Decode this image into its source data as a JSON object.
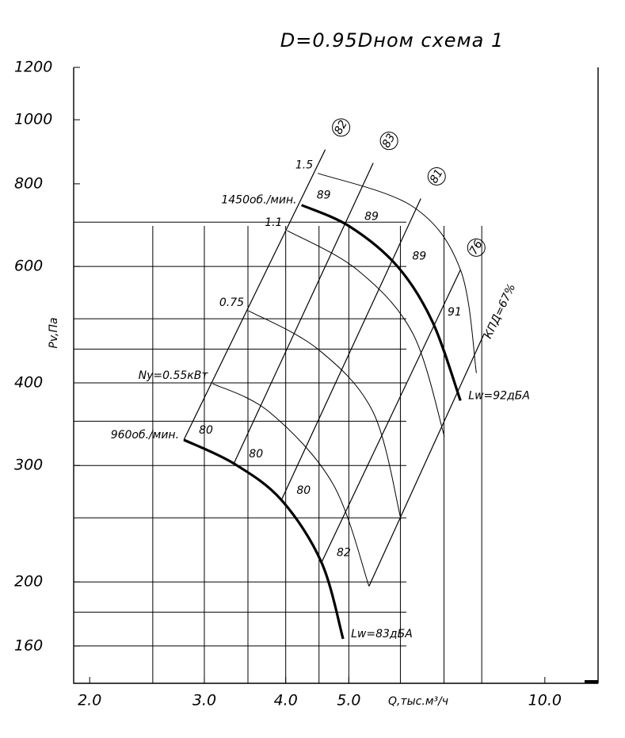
{
  "chart_data": {
    "type": "line",
    "title": "D=0.95Dном схема 1",
    "xlabel": "Q,тыс.м³/ч",
    "ylabel": "Pv,Па",
    "xlog": true,
    "ylog": true,
    "grid": true,
    "color": "#000000",
    "xlim": [
      1.89,
      12.07
    ],
    "ylim": [
      140.5,
      1200
    ],
    "xticks": [
      {
        "value": 2,
        "label": "2.0"
      },
      {
        "value": 3,
        "label": "3.0"
      },
      {
        "value": 4,
        "label": "4.0"
      },
      {
        "value": 5,
        "label": "5.0"
      },
      {
        "value": 10,
        "label": "10.0"
      }
    ],
    "yticks": [
      160,
      200,
      300,
      400,
      600,
      800,
      1000,
      1200
    ],
    "xgrid": [
      2.5,
      3,
      3.5,
      4,
      4.5,
      5,
      6,
      7,
      8
    ],
    "ygrid": [
      160,
      180,
      200,
      250,
      300,
      350,
      400,
      450,
      500,
      600,
      700
    ],
    "series": [
      {
        "name": "960об./мин.",
        "x": [
          2.79,
          3.33,
          3.94,
          4.54,
          4.9
        ],
        "values": [
          328,
          302,
          266,
          214,
          164
        ],
        "point_labels": [
          "80",
          "80",
          "80",
          "82",
          null
        ],
        "end_label": "Lw=83дБА"
      },
      {
        "name": "1450об./мин.",
        "x": [
          4.23,
          5.01,
          5.93,
          6.72,
          7.42
        ],
        "values": [
          743,
          690,
          601,
          495,
          376
        ],
        "point_labels": [
          "89",
          "89",
          "89",
          "91",
          null
        ],
        "end_label": "Lw=92дБА"
      }
    ],
    "efficiency_lines": [
      {
        "label": "82",
        "x": [
          2.79,
          4.6
        ],
        "y": [
          328,
          901
        ]
      },
      {
        "label": "83",
        "x": [
          3.33,
          5.45
        ],
        "y": [
          302,
          860
        ]
      },
      {
        "label": "81",
        "x": [
          3.94,
          6.45
        ],
        "y": [
          266,
          760
        ]
      },
      {
        "label": "76",
        "x": [
          4.54,
          7.42
        ],
        "y": [
          214,
          593
        ]
      },
      {
        "label": "КПД=67%",
        "x": [
          5.37,
          8.07
        ],
        "y": [
          197,
          475
        ]
      }
    ],
    "power_lines": [
      {
        "label": "1.5",
        "x": [
          4.48,
          6.27,
          7.42,
          7.85
        ],
        "y": [
          830,
          739,
          593,
          414
        ]
      },
      {
        "label": "1.1",
        "x": [
          4.02,
          5.15,
          6.27,
          7.01
        ],
        "y": [
          680,
          593,
          475,
          332
        ]
      },
      {
        "label": "0.75",
        "x": [
          3.51,
          4.48,
          5.45,
          6.01
        ],
        "y": [
          514,
          450,
          361,
          249
        ]
      },
      {
        "label": "Ny=0.55кВт",
        "x": [
          3.09,
          3.78,
          4.73,
          5.37
        ],
        "y": [
          399,
          361,
          281,
          197
        ]
      }
    ]
  }
}
